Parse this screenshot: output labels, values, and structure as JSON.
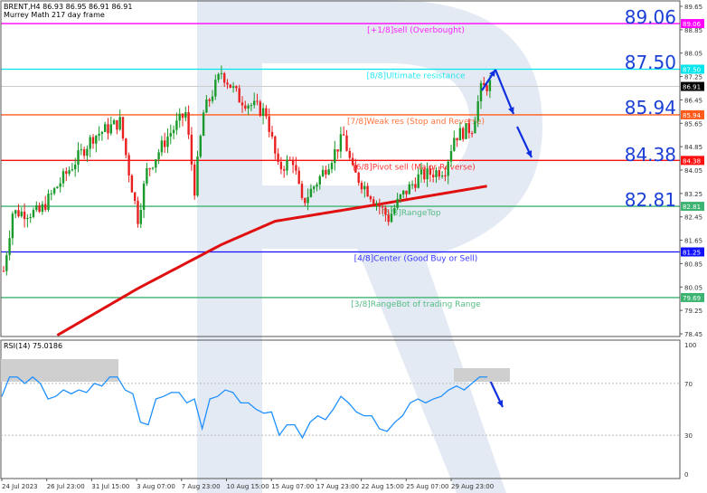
{
  "header": {
    "symbol_line": "BRENT,H4  86.93 86.95 86.91 86.91",
    "indicator_name": "Murrey Math 217 day frame"
  },
  "colors": {
    "bull": "#1a9a2a",
    "bear": "#e82020",
    "ma": "#e01010",
    "rsi": "#1e90ff",
    "arrow": "#1030e0",
    "big_label": "#1a3fd6"
  },
  "chart_data": {
    "type": "candlestick",
    "ylim": [
      78.45,
      89.65
    ],
    "price_ticks": [
      "89.65",
      "88.85",
      "88.05",
      "87.25",
      "86.45",
      "85.65",
      "84.85",
      "84.05",
      "83.25",
      "82.45",
      "81.65",
      "80.85",
      "80.05",
      "79.25",
      "78.45"
    ],
    "current_price": "86.91",
    "price_path": [
      [
        0,
        80.6
      ],
      [
        3,
        82.6
      ],
      [
        12,
        82.6
      ],
      [
        18,
        83.5
      ],
      [
        30,
        85.2
      ],
      [
        39,
        85.7
      ],
      [
        42,
        84.0
      ],
      [
        45,
        82.4
      ],
      [
        48,
        84.0
      ],
      [
        55,
        85.2
      ],
      [
        61,
        86.0
      ],
      [
        64,
        83.4
      ],
      [
        67,
        86.0
      ],
      [
        73,
        87.4
      ],
      [
        79,
        86.5
      ],
      [
        88,
        86.0
      ],
      [
        92,
        84.1
      ],
      [
        97,
        84.4
      ],
      [
        100,
        82.9
      ],
      [
        106,
        83.8
      ],
      [
        114,
        85.2
      ],
      [
        117,
        84.0
      ],
      [
        124,
        83.1
      ],
      [
        129,
        82.4
      ],
      [
        133,
        83.1
      ],
      [
        139,
        83.8
      ],
      [
        148,
        84.1
      ],
      [
        151,
        85.2
      ],
      [
        157,
        85.5
      ],
      [
        160,
        86.8
      ],
      [
        163,
        87.0
      ]
    ],
    "ma_path": [
      [
        18,
        78.4
      ],
      [
        45,
        80.0
      ],
      [
        73,
        81.5
      ],
      [
        91,
        82.3
      ],
      [
        127,
        82.9
      ],
      [
        162,
        83.5
      ]
    ],
    "murrey_levels": [
      {
        "label": "[+1/8]sell (Overbought)",
        "value": "89.06",
        "color": "#ff00ff"
      },
      {
        "label": "[8/8]Ultimate resistance",
        "value": "87.50",
        "color": "#00e5ee"
      },
      {
        "label": "[7/8]Weak res (Stop and Reverse)",
        "value": "85.94",
        "color": "#ff5a1a"
      },
      {
        "label": "[6/8]Pivot sell (Major Reverse)",
        "value": "84.38",
        "color": "#ff1010"
      },
      {
        "label": "[5/8]RangeTop",
        "value": "82.81",
        "color": "#3cb371"
      },
      {
        "label": "[4/8]Center (Good Buy or Sell)",
        "value": "81.25",
        "color": "#1010ff"
      },
      {
        "label": "[3/8]RangeBot of trading Range",
        "value": "79.69",
        "color": "#3cb371"
      }
    ],
    "big_labels": [
      "89.06",
      "87.50",
      "85.94",
      "84.38",
      "82.81"
    ],
    "rsi": {
      "title": "RSI(14) 75.0186",
      "ylim": [
        0,
        100
      ],
      "ticks": [
        "100",
        "70",
        "30",
        "0"
      ],
      "values": [
        60,
        75,
        75,
        70,
        75,
        70,
        58,
        60,
        65,
        62,
        65,
        63,
        70,
        68,
        75,
        75,
        65,
        62,
        40,
        38,
        58,
        60,
        63,
        63,
        55,
        58,
        35,
        58,
        60,
        65,
        63,
        55,
        55,
        50,
        47,
        48,
        30,
        38,
        38,
        28,
        40,
        45,
        42,
        50,
        60,
        55,
        48,
        45,
        45,
        35,
        33,
        40,
        45,
        55,
        58,
        55,
        58,
        60,
        65,
        68,
        65,
        70,
        75,
        75
      ]
    },
    "x_labels": [
      "24 Jul 2023",
      "26 Jul 23:00",
      "31 Jul 15:00",
      "3 Aug 07:00",
      "7 Aug 23:00",
      "10 Aug 15:00",
      "15 Aug 07:00",
      "17 Aug 23:00",
      "22 Aug 15:00",
      "25 Aug 07:00",
      "29 Aug 23:00"
    ]
  }
}
